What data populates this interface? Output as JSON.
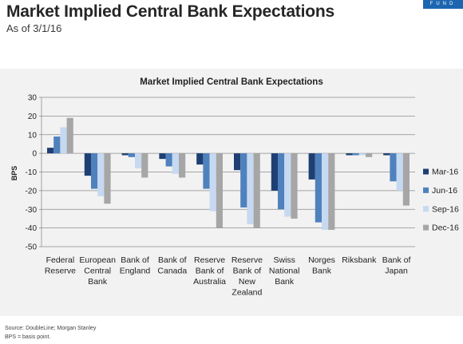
{
  "page": {
    "title": "Market Implied Central Bank Expectations",
    "subtitle": "As of 3/1/16",
    "brand": "FUND",
    "source": "Source: DoubleLine; Morgan Stanley",
    "note": "BPS = basis point."
  },
  "colors": {
    "Mar-16": "#1f3f73",
    "Jun-16": "#4f81bd",
    "Sep-16": "#c6d9f1",
    "Dec-16": "#a6a6a6"
  },
  "chart_data": {
    "type": "bar",
    "title": "Market Implied Central Bank Expectations",
    "xlabel": "",
    "ylabel": "BPS",
    "ylim": [
      -50,
      30
    ],
    "yticks": [
      30,
      20,
      10,
      0,
      -10,
      -20,
      -30,
      -40,
      -50
    ],
    "grid": true,
    "legend_position": "right",
    "categories": [
      [
        "Federal",
        "Reserve"
      ],
      [
        "European",
        "Central",
        "Bank"
      ],
      [
        "Bank of",
        "England"
      ],
      [
        "Bank of",
        "Canada"
      ],
      [
        "Reserve",
        "Bank of",
        "Australia"
      ],
      [
        "Reserve",
        "Bank of",
        "New",
        "Zealand"
      ],
      [
        "Swiss",
        "National",
        "Bank"
      ],
      [
        "Norges",
        "Bank"
      ],
      [
        "Riksbank"
      ],
      [
        "Bank of",
        "Japan"
      ]
    ],
    "series": [
      {
        "name": "Mar-16",
        "values": [
          3,
          -12,
          -1,
          -3,
          -6,
          -9,
          -20,
          -14,
          -1,
          -1
        ]
      },
      {
        "name": "Jun-16",
        "values": [
          9,
          -19,
          -2,
          -7,
          -19,
          -29,
          -30,
          -37,
          -1,
          -15
        ]
      },
      {
        "name": "Sep-16",
        "values": [
          14,
          -23,
          -8,
          -11,
          -31,
          -38,
          -34,
          -41,
          -1,
          -20
        ]
      },
      {
        "name": "Dec-16",
        "values": [
          19,
          -27,
          -13,
          -13,
          -40,
          -40,
          -35,
          -41,
          -2,
          -28
        ]
      }
    ]
  }
}
